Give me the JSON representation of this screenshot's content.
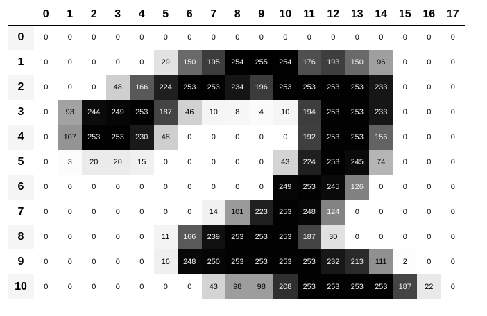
{
  "columns": [
    "0",
    "1",
    "2",
    "3",
    "4",
    "5",
    "6",
    "7",
    "8",
    "9",
    "10",
    "11",
    "12",
    "13",
    "14",
    "15",
    "16",
    "17"
  ],
  "rows": [
    {
      "label": "0",
      "values": [
        0,
        0,
        0,
        0,
        0,
        0,
        0,
        0,
        0,
        0,
        0,
        0,
        0,
        0,
        0,
        0,
        0,
        0
      ]
    },
    {
      "label": "1",
      "values": [
        0,
        0,
        0,
        0,
        0,
        29,
        150,
        195,
        254,
        255,
        254,
        176,
        193,
        150,
        96,
        0,
        0,
        0
      ]
    },
    {
      "label": "2",
      "values": [
        0,
        0,
        0,
        48,
        166,
        224,
        253,
        253,
        234,
        196,
        253,
        253,
        253,
        253,
        233,
        0,
        0,
        0
      ]
    },
    {
      "label": "3",
      "values": [
        0,
        93,
        244,
        249,
        253,
        187,
        46,
        10,
        8,
        4,
        10,
        194,
        253,
        253,
        233,
        0,
        0,
        0
      ]
    },
    {
      "label": "4",
      "values": [
        0,
        107,
        253,
        253,
        230,
        48,
        0,
        0,
        0,
        0,
        0,
        192,
        253,
        253,
        156,
        0,
        0,
        0
      ]
    },
    {
      "label": "5",
      "values": [
        0,
        3,
        20,
        20,
        15,
        0,
        0,
        0,
        0,
        0,
        43,
        224,
        253,
        245,
        74,
        0,
        0,
        0
      ]
    },
    {
      "label": "6",
      "values": [
        0,
        0,
        0,
        0,
        0,
        0,
        0,
        0,
        0,
        0,
        249,
        253,
        245,
        126,
        0,
        0,
        0,
        0
      ]
    },
    {
      "label": "7",
      "values": [
        0,
        0,
        0,
        0,
        0,
        0,
        0,
        14,
        101,
        223,
        253,
        248,
        124,
        0,
        0,
        0,
        0,
        0
      ]
    },
    {
      "label": "8",
      "values": [
        0,
        0,
        0,
        0,
        0,
        11,
        166,
        239,
        253,
        253,
        253,
        187,
        30,
        0,
        0,
        0,
        0,
        0
      ]
    },
    {
      "label": "9",
      "values": [
        0,
        0,
        0,
        0,
        0,
        16,
        248,
        250,
        253,
        253,
        253,
        253,
        232,
        213,
        111,
        2,
        0,
        0
      ]
    },
    {
      "label": "10",
      "values": [
        0,
        0,
        0,
        0,
        0,
        0,
        0,
        43,
        98,
        98,
        208,
        253,
        253,
        253,
        253,
        187,
        22,
        0
      ]
    }
  ]
}
